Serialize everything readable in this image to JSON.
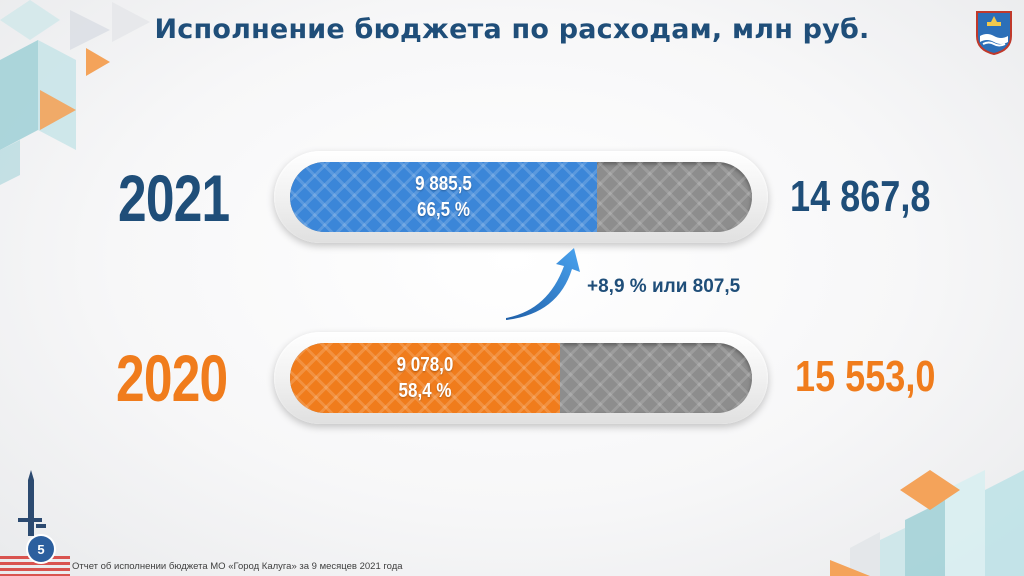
{
  "title": "Исполнение бюджета по расходам, млн руб.",
  "footer": "Отчет об исполнении бюджета МО «Город Калуга» за 9 месяцев 2021 года",
  "page_number": "5",
  "growth_label": "+8,9 % или 807,5",
  "rows": [
    {
      "year": "2021",
      "executed": "9 885,5",
      "percent": "66,5 %",
      "total": "14 867,8",
      "color": "#3b86d8"
    },
    {
      "year": "2020",
      "executed": "9 078,0",
      "percent": "58,4 %",
      "total": "15 553,0",
      "color": "#f07c1c"
    }
  ],
  "chart_data": {
    "type": "bar",
    "orientation": "horizontal",
    "categories": [
      "2021",
      "2020"
    ],
    "series": [
      {
        "values": [
          9885.5,
          9078.0
        ]
      }
    ],
    "totals": [
      14867.8,
      15553.0
    ],
    "percent_of_total": [
      66.5,
      58.4
    ],
    "title": "Исполнение бюджета по расходам, млн руб.",
    "annotations": [
      "+8,9 % или 807,5"
    ],
    "colors": [
      "#3b86d8",
      "#f07c1c"
    ],
    "grid": false
  }
}
